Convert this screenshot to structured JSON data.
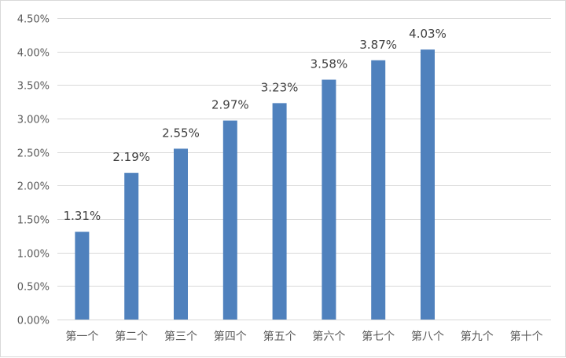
{
  "chart_data": {
    "type": "bar",
    "categories": [
      "第一个",
      "第二个",
      "第三个",
      "第四个",
      "第五个",
      "第六个",
      "第七个",
      "第八个",
      "第九个",
      "第十个"
    ],
    "values": [
      1.31,
      2.19,
      2.55,
      2.97,
      3.23,
      3.58,
      3.87,
      4.03,
      null,
      null
    ],
    "data_labels": [
      "1.31%",
      "2.19%",
      "2.55%",
      "2.97%",
      "3.23%",
      "3.58%",
      "3.87%",
      "4.03%",
      "",
      ""
    ],
    "y_ticks": [
      0.0,
      0.5,
      1.0,
      1.5,
      2.0,
      2.5,
      3.0,
      3.5,
      4.0,
      4.5
    ],
    "y_tick_labels": [
      "0.00%",
      "0.50%",
      "1.00%",
      "1.50%",
      "2.00%",
      "2.50%",
      "3.00%",
      "3.50%",
      "4.00%",
      "4.50%"
    ],
    "ylim": [
      0,
      4.5
    ],
    "y_unit": "%",
    "grid": true,
    "legend": "none",
    "title": "",
    "xlabel": "",
    "ylabel": "",
    "bar_color": "#4f81bd"
  }
}
